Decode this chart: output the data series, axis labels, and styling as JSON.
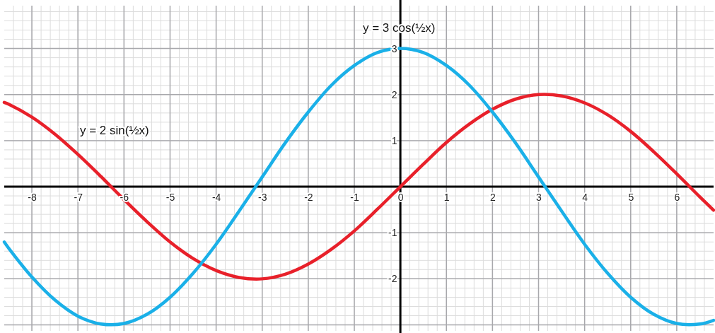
{
  "chart_data": {
    "type": "line",
    "x": [
      -8.6,
      -8.5,
      -8,
      -7.5,
      -7,
      -6.5,
      -6,
      -5.5,
      -5,
      -4.5,
      -4,
      -3.5,
      -3,
      -2.5,
      -2,
      -1.5,
      -1,
      -0.5,
      0,
      0.5,
      1,
      1.5,
      2,
      2.5,
      3,
      3.5,
      4,
      4.5,
      5,
      5.5,
      6,
      6.5,
      6.8
    ],
    "series": [
      {
        "name": "y = 2 sin(½x)",
        "color": "#e8202a",
        "values": [
          1.83,
          1.79,
          1.51,
          1.14,
          0.7,
          0.22,
          -0.28,
          -0.76,
          -1.2,
          -1.56,
          -1.82,
          -1.97,
          -2.0,
          -1.9,
          -1.68,
          -1.36,
          -0.96,
          -0.49,
          0,
          0.49,
          0.96,
          1.36,
          1.68,
          1.9,
          2.0,
          1.97,
          1.82,
          1.56,
          1.2,
          0.76,
          0.28,
          -0.22,
          -0.51
        ]
      },
      {
        "name": "y = 3 cos(½x)",
        "color": "#1ab0e8",
        "values": [
          -1.2,
          -1.34,
          -1.96,
          -2.46,
          -2.81,
          -2.98,
          -2.97,
          -2.77,
          -2.4,
          -1.88,
          -1.25,
          -0.53,
          0.21,
          0.95,
          1.62,
          2.2,
          2.63,
          2.91,
          3,
          2.91,
          2.63,
          2.2,
          1.62,
          0.95,
          0.21,
          -0.53,
          -1.25,
          -1.88,
          -2.4,
          -2.77,
          -2.97,
          -2.98,
          -2.9
        ]
      }
    ],
    "xlim": [
      -8.6,
      6.8
    ],
    "ylim": [
      -3.13,
      3.93
    ],
    "xticks": [
      -8,
      -7,
      -6,
      -5,
      -4,
      -3,
      -2,
      -1,
      0,
      1,
      2,
      3,
      4,
      5,
      6
    ],
    "yticks": [
      {
        "value": -3,
        "label": null
      },
      -2,
      -1,
      1,
      2,
      3
    ],
    "grid": true,
    "legend": false,
    "marker": "none",
    "line_style": "solid"
  }
}
